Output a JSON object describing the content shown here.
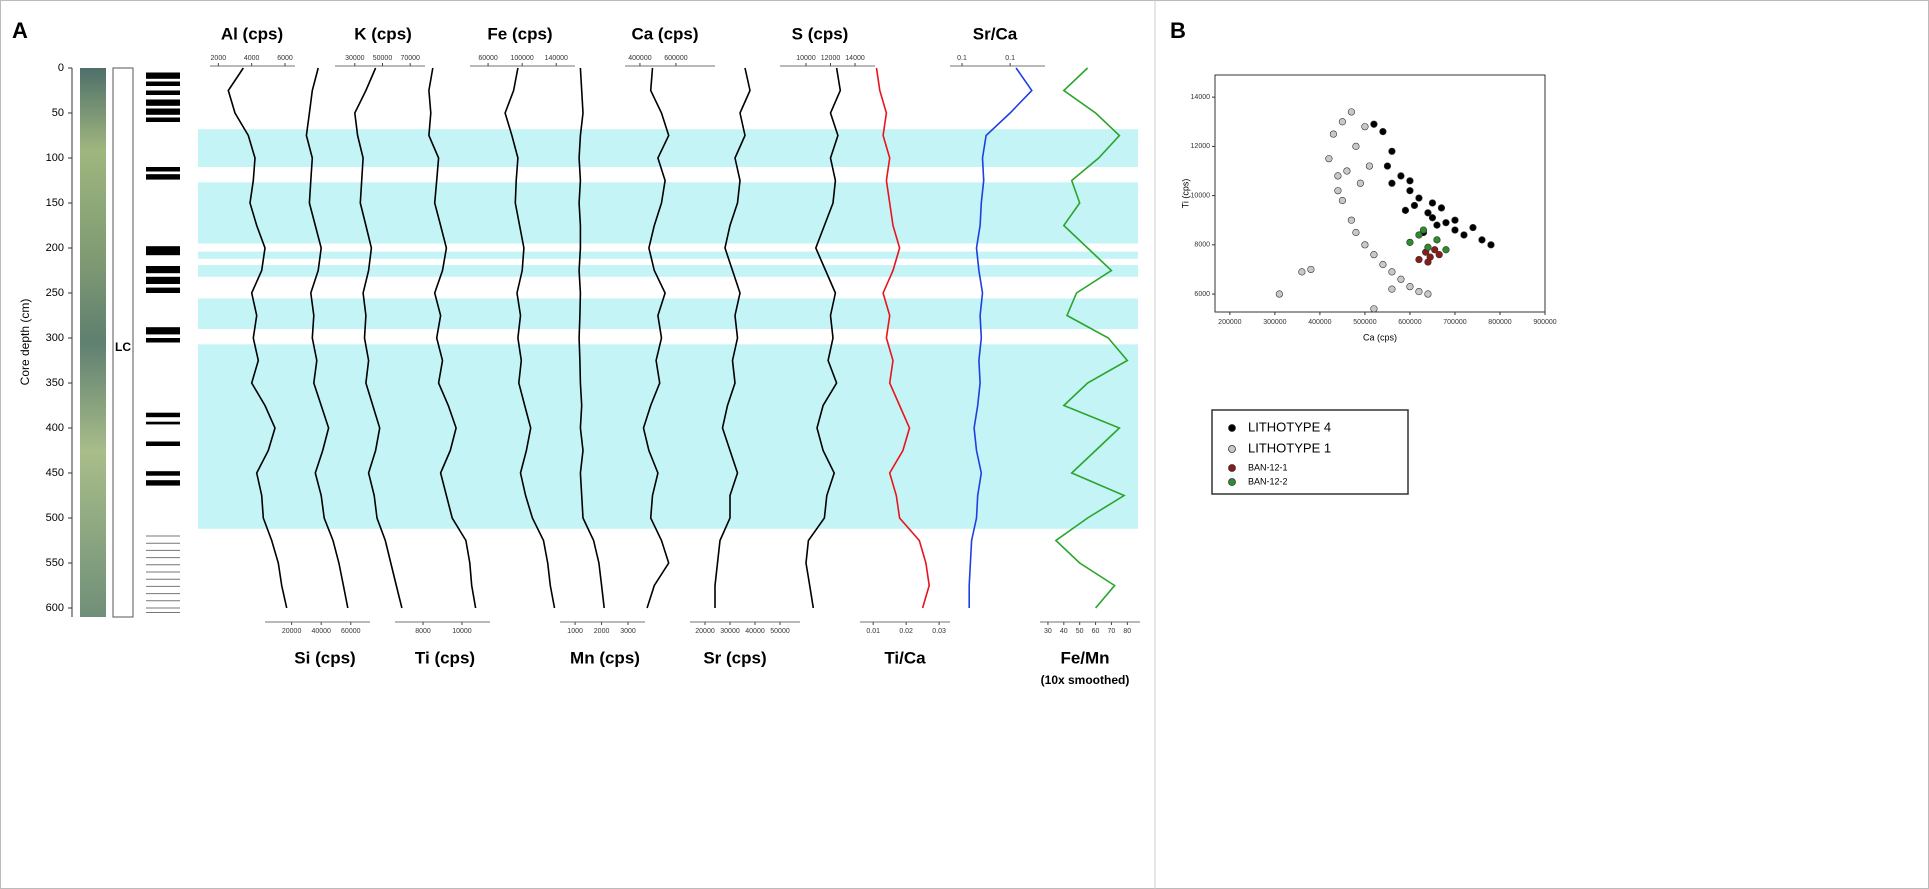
{
  "chart_data": [
    {
      "type": "depth-profile",
      "panel_label": "A",
      "y_label": "Core depth (cm)",
      "core_label": "LC",
      "ylim": [
        0,
        610
      ],
      "yticks": [
        0,
        50,
        100,
        150,
        200,
        250,
        300,
        350,
        400,
        450,
        500,
        550,
        600
      ],
      "depths": [
        0,
        25,
        50,
        75,
        100,
        125,
        150,
        175,
        200,
        225,
        250,
        275,
        300,
        325,
        350,
        375,
        400,
        425,
        450,
        475,
        500,
        525,
        550,
        575,
        600
      ],
      "highlight_intervals": [
        [
          68,
          110
        ],
        [
          127,
          195
        ],
        [
          204,
          212
        ],
        [
          219,
          232
        ],
        [
          256,
          290
        ],
        [
          307,
          512
        ]
      ],
      "lithotype4_intervals": [
        [
          5,
          12
        ],
        [
          15,
          20
        ],
        [
          25,
          30
        ],
        [
          35,
          42
        ],
        [
          45,
          52
        ],
        [
          55,
          60
        ],
        [
          110,
          115
        ],
        [
          118,
          124
        ],
        [
          198,
          208
        ],
        [
          220,
          228
        ],
        [
          232,
          240
        ],
        [
          244,
          250
        ],
        [
          288,
          296
        ],
        [
          300,
          305
        ],
        [
          383,
          388
        ],
        [
          393,
          396
        ],
        [
          415,
          420
        ],
        [
          448,
          453
        ],
        [
          458,
          464
        ]
      ],
      "thin_bands": [
        520,
        528,
        536,
        544,
        552,
        560,
        568,
        576,
        584,
        592,
        600,
        605
      ],
      "tracks": [
        {
          "title": "Al (cps)",
          "axis": "top",
          "color": "#000000",
          "xlim": [
            1500,
            6600
          ],
          "xticks": [
            2000,
            4000,
            6000
          ],
          "values": [
            3500,
            2600,
            3000,
            3800,
            4200,
            4100,
            3900,
            4300,
            4800,
            4600,
            4000,
            4300,
            4100,
            4400,
            4000,
            4800,
            5400,
            5000,
            4300,
            4600,
            4700,
            5200,
            5600,
            5800,
            6100
          ]
        },
        {
          "title": "Si (cps)",
          "axis": "bottom",
          "color": "#000000",
          "xlim": [
            2000,
            73000
          ],
          "xticks": [
            20000,
            40000,
            60000
          ],
          "values": [
            38000,
            34000,
            32000,
            30000,
            34000,
            33000,
            32000,
            36000,
            40000,
            38000,
            33000,
            35000,
            34000,
            37000,
            35000,
            40000,
            45000,
            41000,
            36000,
            40000,
            42000,
            48000,
            52000,
            55000,
            58000
          ]
        },
        {
          "title": "K (cps)",
          "axis": "top",
          "color": "#000000",
          "xlim": [
            15700,
            80700
          ],
          "xticks": [
            30000,
            50000,
            70000
          ],
          "values": [
            45000,
            38000,
            30000,
            32000,
            36000,
            35000,
            34000,
            38000,
            42000,
            40000,
            36000,
            38000,
            37000,
            40000,
            38000,
            43000,
            48000,
            45000,
            40000,
            44000,
            46000,
            52000,
            56000,
            60000,
            64000
          ]
        },
        {
          "title": "Ti (cps)",
          "axis": "bottom",
          "color": "#000000",
          "xlim": [
            6560,
            11440
          ],
          "xticks": [
            8000,
            10000
          ],
          "values": [
            8500,
            8300,
            8400,
            8300,
            8800,
            8700,
            8600,
            8900,
            9200,
            9000,
            8600,
            8900,
            8700,
            9000,
            8800,
            9300,
            9700,
            9400,
            8900,
            9200,
            9500,
            10200,
            10400,
            10500,
            10700
          ]
        },
        {
          "title": "Fe (cps)",
          "axis": "top",
          "color": "#000000",
          "xlim": [
            38800,
            162000
          ],
          "xticks": [
            60000,
            100000,
            140000
          ],
          "values": [
            95000,
            90000,
            80000,
            88000,
            95000,
            93000,
            92000,
            97000,
            102000,
            100000,
            94000,
            98000,
            95000,
            99000,
            96000,
            103000,
            110000,
            105000,
            98000,
            104000,
            112000,
            125000,
            130000,
            133000,
            138000
          ]
        },
        {
          "title": "Mn (cps)",
          "axis": "bottom",
          "color": "#000000",
          "xlim": [
            430,
            3640
          ],
          "xticks": [
            1000,
            2000,
            3000
          ],
          "values": [
            1200,
            1250,
            1300,
            1200,
            1150,
            1200,
            1150,
            1200,
            1200,
            1150,
            1200,
            1180,
            1150,
            1180,
            1200,
            1250,
            1200,
            1300,
            1200,
            1250,
            1300,
            1700,
            1900,
            2000,
            2100
          ]
        },
        {
          "title": "Ca (cps)",
          "axis": "top",
          "color": "#000000",
          "xlim": [
            317000,
            817000
          ],
          "xticks": [
            400000,
            600000
          ],
          "values": [
            470000,
            460000,
            520000,
            560000,
            500000,
            540000,
            520000,
            480000,
            450000,
            480000,
            540000,
            500000,
            520000,
            490000,
            510000,
            460000,
            420000,
            450000,
            500000,
            470000,
            460000,
            520000,
            560000,
            480000,
            440000
          ]
        },
        {
          "title": "Sr (cps)",
          "axis": "bottom",
          "color": "#000000",
          "xlim": [
            14000,
            58000
          ],
          "xticks": [
            20000,
            30000,
            40000,
            50000
          ],
          "values": [
            36000,
            38000,
            34000,
            36000,
            32000,
            34000,
            33000,
            30000,
            28000,
            31000,
            34000,
            32000,
            33000,
            31000,
            32000,
            29000,
            27000,
            30000,
            33000,
            30000,
            30000,
            26000,
            25000,
            24000,
            24000
          ]
        },
        {
          "title": "S (cps)",
          "axis": "top",
          "color": "#000000",
          "xlim": [
            7880,
            15630
          ],
          "xticks": [
            10000,
            12000,
            14000
          ],
          "values": [
            12500,
            12800,
            12000,
            12600,
            12000,
            12400,
            12200,
            11500,
            10800,
            11600,
            12400,
            12000,
            12200,
            11800,
            12500,
            11400,
            10900,
            11400,
            12300,
            11700,
            11500,
            10200,
            10000,
            10300,
            10600
          ]
        },
        {
          "title": "Ti/Ca",
          "axis": "bottom",
          "color": "#e8141c",
          "xlim": [
            0.006,
            0.0333
          ],
          "xticks": [
            0.01,
            0.02,
            0.03
          ],
          "values": [
            0.011,
            0.012,
            0.014,
            0.013,
            0.015,
            0.014,
            0.015,
            0.016,
            0.018,
            0.016,
            0.013,
            0.015,
            0.014,
            0.016,
            0.015,
            0.018,
            0.021,
            0.019,
            0.015,
            0.017,
            0.018,
            0.024,
            0.026,
            0.027,
            0.025
          ]
        },
        {
          "title": "Sr/Ca",
          "axis": "top",
          "color": "#1f3fe0",
          "xlim": [
            0.07,
            0.149
          ],
          "xticks": [
            {
              "value": 0.08,
              "label": "0.1"
            },
            {
              "value": 0.12,
              "label": "0.1"
            }
          ],
          "values": [
            0.125,
            0.138,
            0.12,
            0.1,
            0.097,
            0.098,
            0.096,
            0.095,
            0.092,
            0.094,
            0.097,
            0.095,
            0.096,
            0.094,
            0.095,
            0.093,
            0.09,
            0.092,
            0.096,
            0.093,
            0.092,
            0.088,
            0.087,
            0.086,
            0.086
          ]
        },
        {
          "title": "Fe/Mn",
          "subtitle": "(10x smoothed)",
          "axis": "bottom",
          "color": "#2aa52a",
          "xlim": [
            25,
            88
          ],
          "xticks": [
            30,
            40,
            50,
            60,
            70,
            80
          ],
          "values": [
            55,
            40,
            60,
            75,
            62,
            45,
            50,
            40,
            55,
            70,
            48,
            42,
            68,
            80,
            55,
            40,
            75,
            60,
            45,
            78,
            55,
            35,
            50,
            72,
            60
          ]
        }
      ]
    },
    {
      "type": "scatter",
      "panel_label": "B",
      "x_label": "Ca (cps)",
      "y_label": "Ti (cps)",
      "xlim": [
        167000,
        900000
      ],
      "xticks": [
        200000,
        300000,
        400000,
        500000,
        600000,
        700000,
        800000,
        900000
      ],
      "ylim": [
        5270,
        14900
      ],
      "yticks": [
        6000,
        8000,
        10000,
        12000,
        14000
      ],
      "series": [
        {
          "name": "LITHOTYPE 4",
          "color": "#000000",
          "x": [
            520000,
            540000,
            560000,
            580000,
            600000,
            610000,
            620000,
            640000,
            650000,
            660000,
            680000,
            700000,
            720000,
            740000,
            760000,
            780000,
            560000,
            590000,
            630000,
            670000,
            700000,
            550000,
            600000,
            650000
          ],
          "y": [
            12900,
            12600,
            11800,
            10800,
            10200,
            9600,
            9900,
            9300,
            9100,
            8800,
            8900,
            8600,
            8400,
            8700,
            8200,
            8000,
            10500,
            9400,
            8500,
            9500,
            9000,
            11200,
            10600,
            9700
          ]
        },
        {
          "name": "LITHOTYPE 1",
          "color": "#c8c8c8",
          "x": [
            420000,
            430000,
            440000,
            450000,
            460000,
            470000,
            480000,
            490000,
            500000,
            510000,
            450000,
            470000,
            440000,
            480000,
            500000,
            520000,
            540000,
            560000,
            580000,
            600000,
            620000,
            640000,
            380000,
            360000,
            310000,
            520000,
            560000
          ],
          "y": [
            11500,
            12500,
            10800,
            13000,
            11000,
            13400,
            12000,
            10500,
            12800,
            11200,
            9800,
            9000,
            10200,
            8500,
            8000,
            7600,
            7200,
            6900,
            6600,
            6300,
            6100,
            6000,
            7000,
            6900,
            6000,
            5400,
            6200
          ]
        },
        {
          "name": "BAN-12-1",
          "color": "#8b1a1a",
          "x": [
            620000,
            635000,
            645000,
            655000,
            665000,
            640000
          ],
          "y": [
            7400,
            7700,
            7500,
            7800,
            7600,
            7300
          ]
        },
        {
          "name": "BAN-12-2",
          "color": "#2e8b2e",
          "x": [
            600000,
            620000,
            640000,
            660000,
            680000,
            630000
          ],
          "y": [
            8100,
            8400,
            7900,
            8200,
            7800,
            8600
          ]
        }
      ]
    }
  ]
}
